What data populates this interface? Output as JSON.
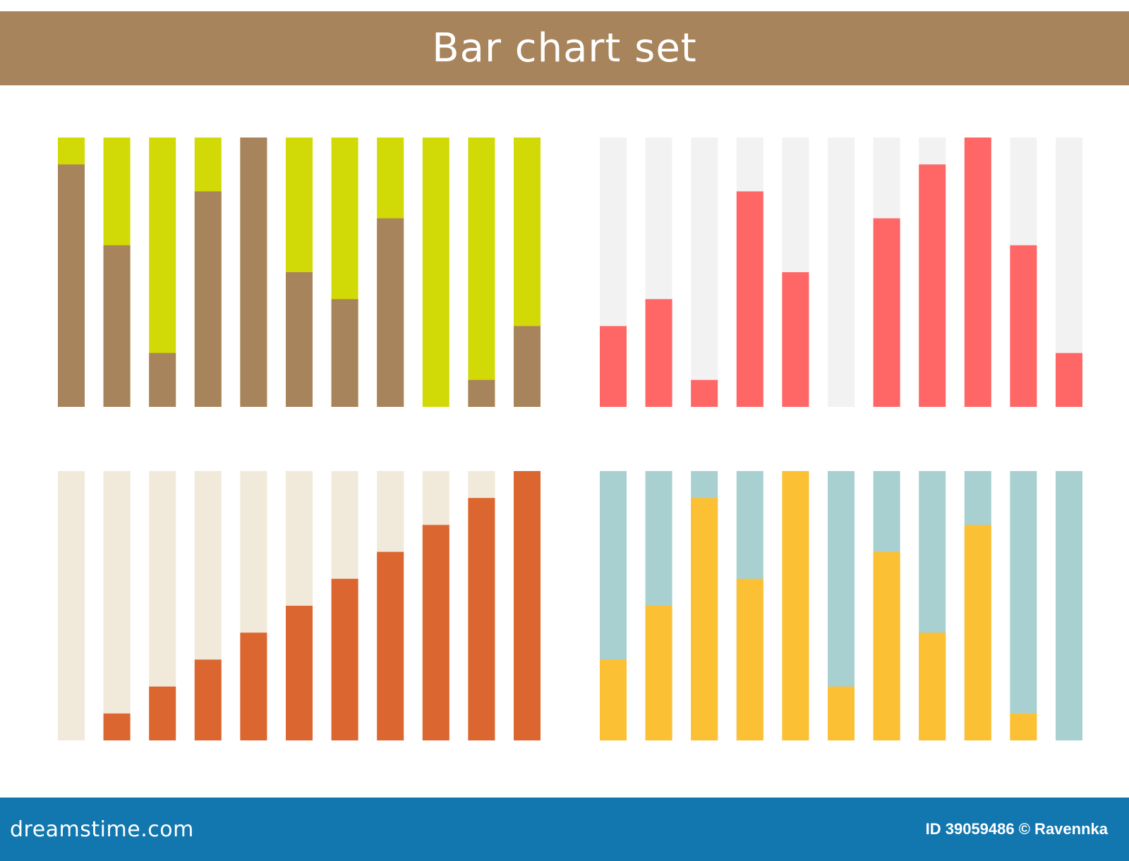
{
  "title": "Bar chart set",
  "footer": {
    "site": "dreamstime.com",
    "credit": "ID 39059486 © Ravennka"
  },
  "colors": {
    "banner": "#a8845c",
    "footer": "#1277af"
  },
  "chart_data": [
    {
      "type": "bar",
      "stacked_percent": true,
      "ylim": [
        0,
        100
      ],
      "values": [
        90,
        60,
        20,
        80,
        100,
        50,
        40,
        70,
        0,
        10,
        30
      ],
      "fill_color": "#a8845c",
      "track_color": "#d1da06"
    },
    {
      "type": "bar",
      "stacked_percent": true,
      "ylim": [
        0,
        100
      ],
      "values": [
        30,
        40,
        10,
        80,
        50,
        0,
        70,
        90,
        100,
        60,
        20
      ],
      "fill_color": "#ff6666",
      "track_color": "#f2f2f2"
    },
    {
      "type": "bar",
      "stacked_percent": true,
      "ylim": [
        0,
        100
      ],
      "values": [
        0,
        10,
        20,
        30,
        40,
        50,
        60,
        70,
        80,
        90,
        100
      ],
      "fill_color": "#db662f",
      "track_color": "#f1e9da"
    },
    {
      "type": "bar",
      "stacked_percent": true,
      "ylim": [
        0,
        100
      ],
      "values": [
        30,
        50,
        90,
        60,
        100,
        20,
        70,
        40,
        80,
        10,
        0
      ],
      "fill_color": "#fcc034",
      "track_color": "#a8d0d1"
    }
  ]
}
